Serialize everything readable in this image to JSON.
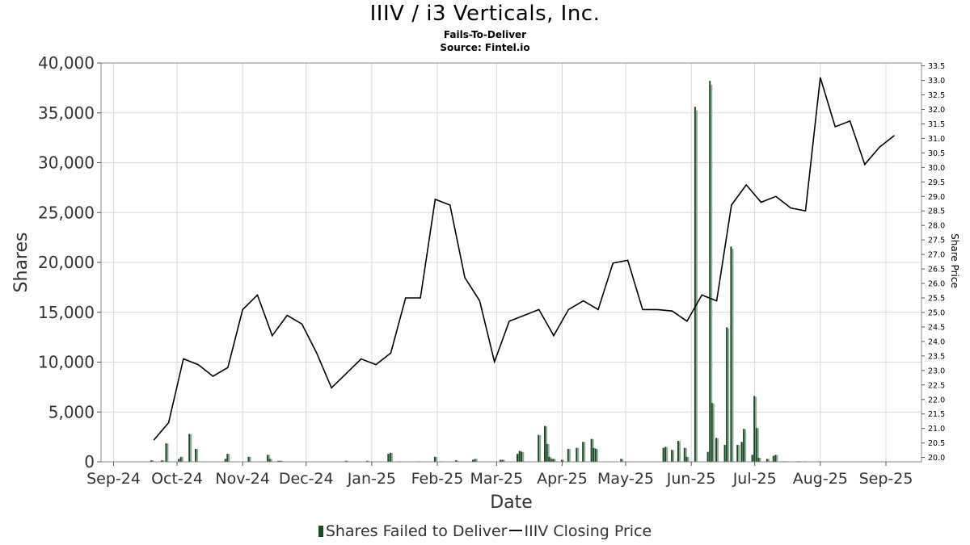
{
  "header": {
    "title": "IIIV / i3 Verticals, Inc.",
    "subtitle": "Fails-To-Deliver",
    "source": "Source: Fintel.io"
  },
  "legend": {
    "bars_label": "Shares Failed to Deliver",
    "line_label": "IIIV Closing Price"
  },
  "colors": {
    "bar_dark": "#1a4a24",
    "bar_light": "#8fa896",
    "line": "#000000",
    "grid": "#d9d9d9"
  },
  "chart_data": {
    "type": "bar+line",
    "xlabel": "Date",
    "ylabel": "Shares",
    "y2label": "Share Price",
    "x_tick_labels": [
      "Sep-24",
      "Oct-24",
      "Nov-24",
      "Dec-24",
      "Jan-25",
      "Feb-25",
      "Mar-25",
      "Apr-25",
      "May-25",
      "Jun-25",
      "Jul-25",
      "Aug-25",
      "Sep-25"
    ],
    "y_ticks": [
      0,
      5000,
      10000,
      15000,
      20000,
      25000,
      30000,
      35000,
      40000
    ],
    "y_tick_labels": [
      "0",
      "5,000",
      "10,000",
      "15,000",
      "20,000",
      "25,000",
      "30,000",
      "35,000",
      "40,000"
    ],
    "ylim": [
      0,
      40000
    ],
    "y2lim": [
      19.85,
      33.6
    ],
    "y2_ticks": [
      20.0,
      20.5,
      21.0,
      21.5,
      22.0,
      22.5,
      23.0,
      23.5,
      24.0,
      24.5,
      25.0,
      25.5,
      26.0,
      26.5,
      27.0,
      27.5,
      28.0,
      28.5,
      29.0,
      29.5,
      30.0,
      30.5,
      31.0,
      31.5,
      32.0,
      32.5,
      33.0,
      33.5
    ],
    "y2_tick_labels": [
      "20.0",
      "20.5",
      "21.0",
      "21.5",
      "22.0",
      "22.5",
      "23.0",
      "23.5",
      "24.0",
      "24.5",
      "25.0",
      "25.5",
      "26.0",
      "26.5",
      "27.0",
      "27.5",
      "28.0",
      "28.5",
      "29.0",
      "29.5",
      "30.0",
      "30.5",
      "31.0",
      "31.5",
      "32.0",
      "32.5",
      "33.0",
      "33.5"
    ],
    "grid": true,
    "legend_position": "bottom-center",
    "series": [
      {
        "name": "Shares Failed to Deliver",
        "type": "bar",
        "axis": "left",
        "x": [
          "2024-09-19",
          "2024-09-24",
          "2024-09-26",
          "2024-10-02",
          "2024-10-03",
          "2024-10-07",
          "2024-10-10",
          "2024-10-24",
          "2024-10-25",
          "2024-11-04",
          "2024-11-13",
          "2024-11-14",
          "2024-11-18",
          "2024-11-19",
          "2024-12-20",
          "2024-12-30",
          "2025-01-09",
          "2025-01-10",
          "2025-01-14",
          "2025-01-23",
          "2025-01-31",
          "2025-02-03",
          "2025-02-10",
          "2025-02-18",
          "2025-02-19",
          "2025-03-03",
          "2025-03-04",
          "2025-03-11",
          "2025-03-12",
          "2025-03-13",
          "2025-03-21",
          "2025-03-24",
          "2025-03-25",
          "2025-03-26",
          "2025-03-27",
          "2025-03-28",
          "2025-04-01",
          "2025-04-04",
          "2025-04-08",
          "2025-04-11",
          "2025-04-15",
          "2025-04-16",
          "2025-04-17",
          "2025-04-29",
          "2025-05-19",
          "2025-05-20",
          "2025-05-23",
          "2025-05-26",
          "2025-05-29",
          "2025-05-30",
          "2025-06-03",
          "2025-06-09",
          "2025-06-10",
          "2025-06-11",
          "2025-06-13",
          "2025-06-17",
          "2025-06-18",
          "2025-06-20",
          "2025-06-23",
          "2025-06-25",
          "2025-06-26",
          "2025-06-30",
          "2025-07-01",
          "2025-07-02",
          "2025-07-03",
          "2025-07-07",
          "2025-07-08",
          "2025-07-09",
          "2025-07-10",
          "2025-07-11",
          "2025-07-14",
          "2025-07-15",
          "2025-07-16",
          "2025-07-21",
          "2025-07-22",
          "2025-07-25",
          "2025-07-31",
          "2025-08-01"
        ],
        "values": [
          150,
          150,
          1850,
          300,
          500,
          2800,
          1300,
          300,
          800,
          500,
          700,
          300,
          100,
          100,
          100,
          100,
          800,
          900,
          50,
          50,
          500,
          50,
          150,
          200,
          300,
          200,
          200,
          800,
          1100,
          1000,
          2700,
          3600,
          1800,
          500,
          300,
          300,
          200,
          1300,
          1400,
          2000,
          2300,
          1400,
          1300,
          300,
          1400,
          1500,
          1200,
          2100,
          1400,
          500,
          35600,
          1000,
          38200,
          5900,
          2400,
          1700,
          13500,
          21600,
          1700,
          2000,
          3300,
          700,
          6600,
          3400,
          400,
          300,
          50,
          50,
          600,
          700,
          50,
          50,
          50,
          50,
          50,
          50,
          50,
          50
        ]
      },
      {
        "name": "IIIV Closing Price",
        "type": "line",
        "axis": "right",
        "x": [
          "2024-09-20",
          "2024-09-27",
          "2024-10-04",
          "2024-10-11",
          "2024-10-18",
          "2024-10-25",
          "2024-11-01",
          "2024-11-08",
          "2024-11-15",
          "2024-11-22",
          "2024-11-29",
          "2024-12-06",
          "2024-12-13",
          "2024-12-20",
          "2024-12-27",
          "2025-01-03",
          "2025-01-10",
          "2025-01-17",
          "2025-01-24",
          "2025-01-31",
          "2025-02-07",
          "2025-02-14",
          "2025-02-21",
          "2025-02-28",
          "2025-03-07",
          "2025-03-14",
          "2025-03-21",
          "2025-03-28",
          "2025-04-04",
          "2025-04-11",
          "2025-04-18",
          "2025-04-25",
          "2025-05-02",
          "2025-05-09",
          "2025-05-16",
          "2025-05-23",
          "2025-05-30",
          "2025-06-06",
          "2025-06-13",
          "2025-06-20",
          "2025-06-27",
          "2025-07-04",
          "2025-07-11",
          "2025-07-18",
          "2025-07-25",
          "2025-08-01",
          "2025-08-08",
          "2025-08-15",
          "2025-08-22",
          "2025-08-29",
          "2025-09-05"
        ],
        "values": [
          20.6,
          21.2,
          23.4,
          23.2,
          22.8,
          23.1,
          25.1,
          25.6,
          24.2,
          24.9,
          24.6,
          23.6,
          22.4,
          22.9,
          23.4,
          23.2,
          23.6,
          25.5,
          25.5,
          28.9,
          28.7,
          26.2,
          25.4,
          23.3,
          24.7,
          24.9,
          25.1,
          24.2,
          25.1,
          25.4,
          25.1,
          26.7,
          26.8,
          25.1,
          25.1,
          25.05,
          24.7,
          25.6,
          25.4,
          28.7,
          29.4,
          28.8,
          29.0,
          28.6,
          28.5,
          33.1,
          31.4,
          31.6,
          30.1,
          30.7,
          31.1
        ]
      }
    ]
  }
}
